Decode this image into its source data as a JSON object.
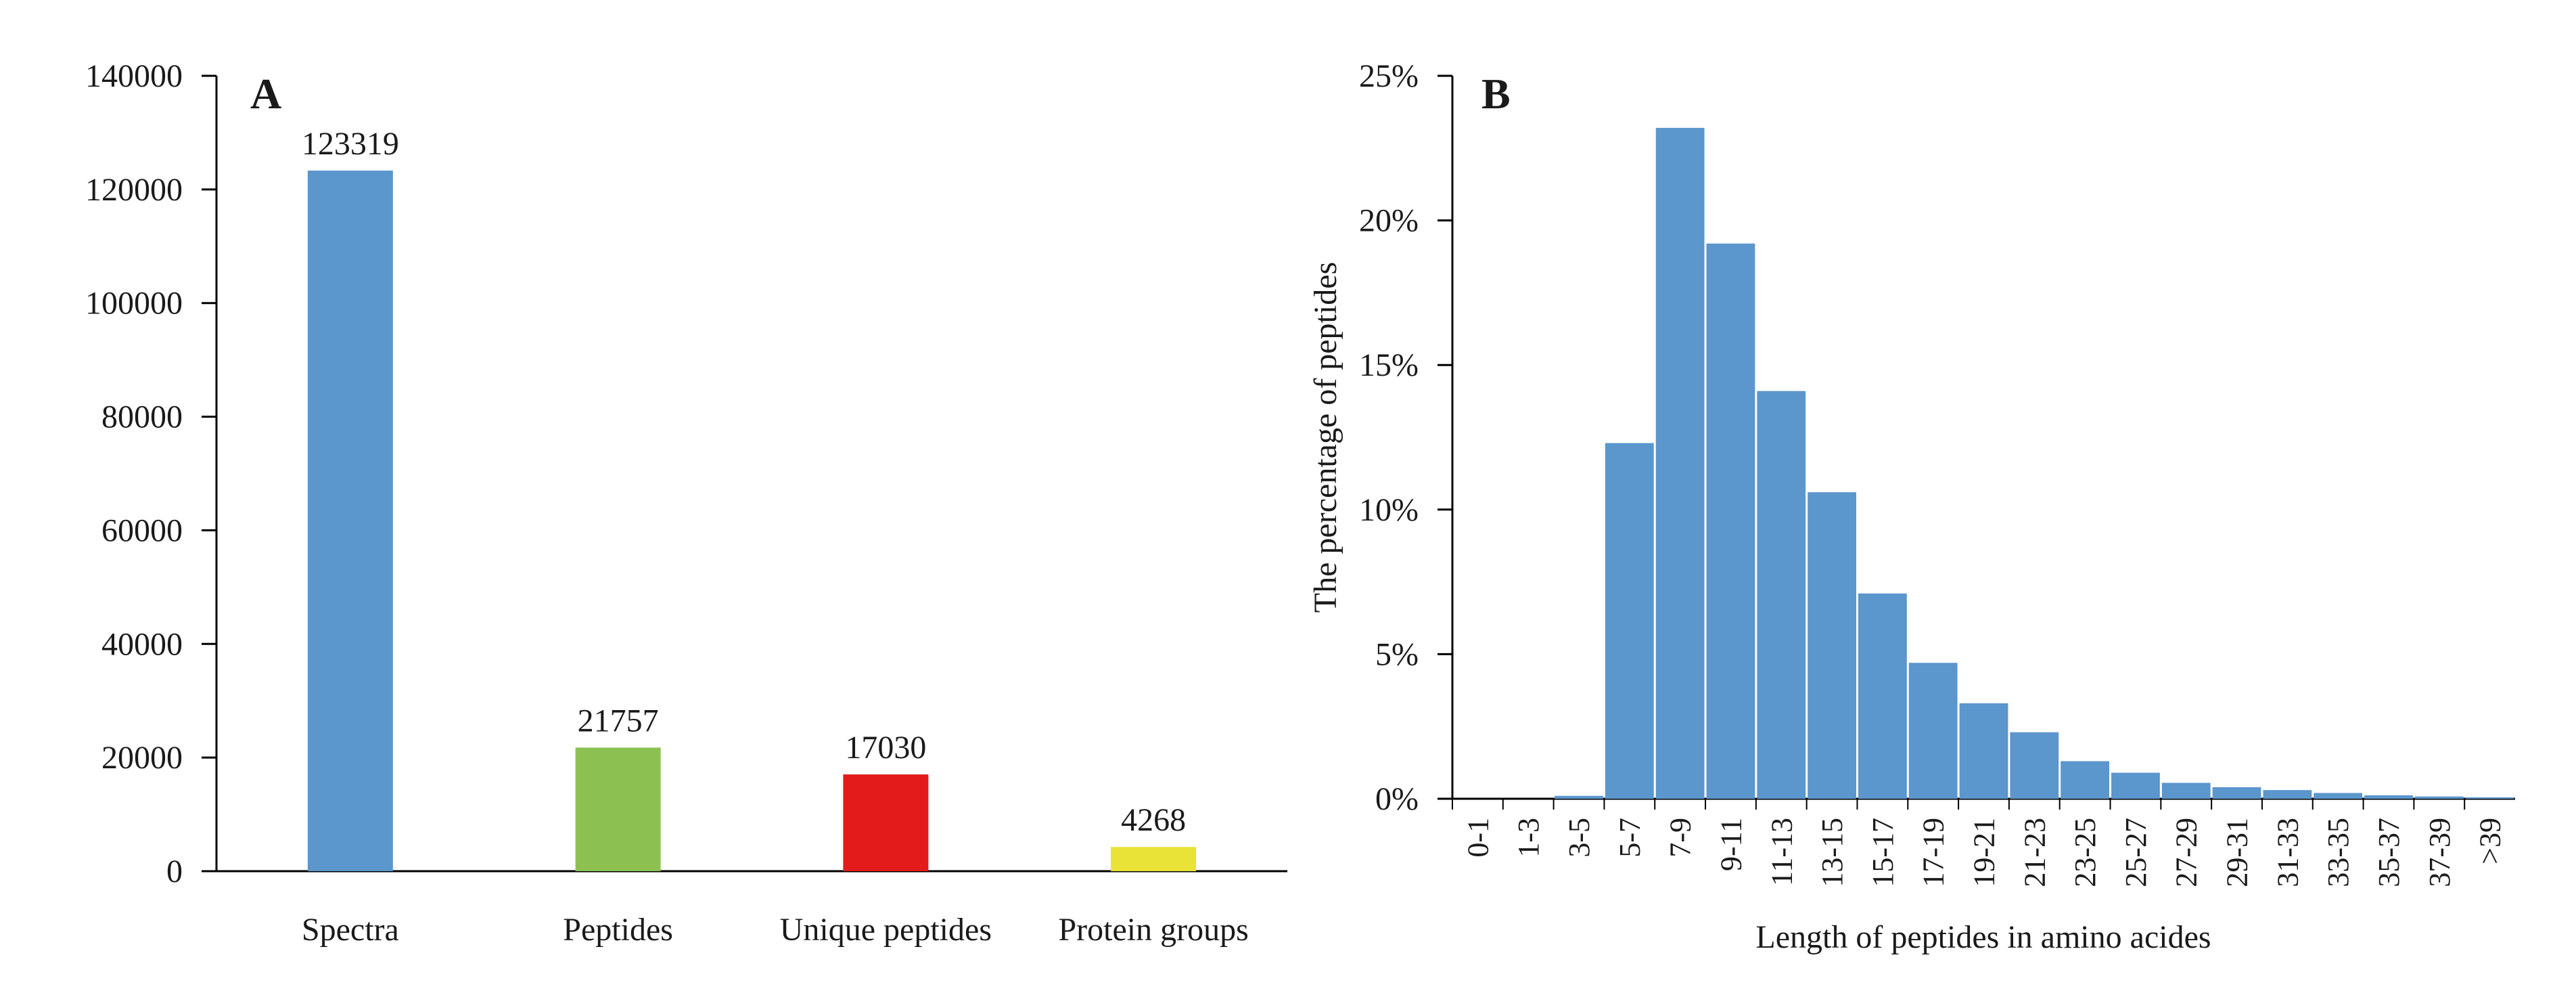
{
  "chart_data": [
    {
      "type": "bar",
      "panel_label": "A",
      "categories": [
        "Spectra",
        "Peptides",
        "Unique peptides",
        "Protein groups"
      ],
      "values": [
        123319,
        21757,
        17030,
        4268
      ],
      "value_labels": [
        "123319",
        "21757",
        "17030",
        "4268"
      ],
      "colors": [
        "#5b96cd",
        "#8cc152",
        "#e31b1b",
        "#e8e336"
      ],
      "ylim": [
        0,
        140000
      ],
      "yticks": [
        0,
        20000,
        40000,
        60000,
        80000,
        100000,
        120000,
        140000
      ],
      "ytick_labels": [
        "0",
        "20000",
        "40000",
        "60000",
        "80000",
        "100000",
        "120000",
        "140000"
      ],
      "title": "",
      "xlabel": "",
      "ylabel": "",
      "grid": false
    },
    {
      "type": "bar",
      "panel_label": "B",
      "categories": [
        "0-1",
        "1-3",
        "3-5",
        "5-7",
        "7-9",
        "9-11",
        "11-13",
        "13-15",
        "15-17",
        "17-19",
        "19-21",
        "21-23",
        "23-25",
        "25-27",
        "27-29",
        "29-31",
        "31-33",
        "33-35",
        "35-37",
        "37-39",
        ">39"
      ],
      "values": [
        0,
        0,
        0.1,
        12.3,
        23.2,
        19.2,
        14.1,
        10.6,
        7.1,
        4.7,
        3.3,
        2.3,
        1.3,
        0.9,
        0.55,
        0.4,
        0.3,
        0.2,
        0.12,
        0.08,
        0.05
      ],
      "color": "#5b96cd",
      "ylim": [
        0,
        25
      ],
      "yticks": [
        0,
        5,
        10,
        15,
        20,
        25
      ],
      "ytick_labels": [
        "0%",
        "5%",
        "10%",
        "15%",
        "20%",
        "25%"
      ],
      "title": "",
      "xlabel": "Length of peptides  in amino acides",
      "ylabel": "The percentage  of peptides",
      "grid": false
    }
  ]
}
